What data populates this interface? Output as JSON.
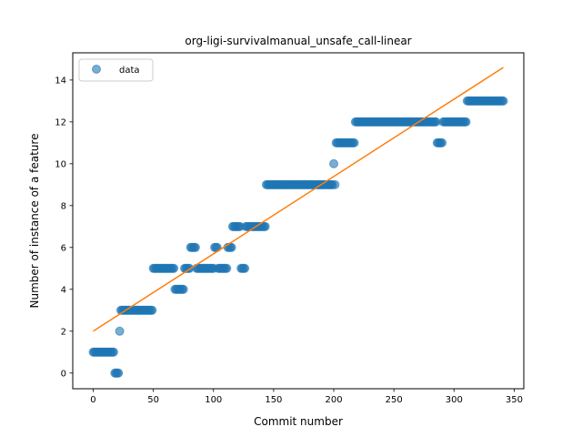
{
  "chart_data": {
    "type": "scatter",
    "title": "org-ligi-survivalmanual_unsafe_call-linear",
    "xlabel": "Commit number",
    "ylabel": "Number of instance of a feature",
    "xlim": [
      -17,
      358
    ],
    "ylim": [
      -0.75,
      15.3
    ],
    "xticks": [
      0,
      50,
      100,
      150,
      200,
      250,
      300,
      350
    ],
    "yticks": [
      0,
      2,
      4,
      6,
      8,
      10,
      12,
      14
    ],
    "grid": false,
    "legend": {
      "placement": "top-left",
      "entries": [
        "data"
      ]
    },
    "colors": {
      "data": "#1f77b4",
      "fit": "#ff7f0e"
    },
    "series": [
      {
        "name": "data",
        "kind": "scatter",
        "runs": [
          {
            "x_start": 0,
            "x_end": 18,
            "y": 1
          },
          {
            "x_start": 18,
            "x_end": 22,
            "y": 0
          },
          {
            "x_start": 22,
            "x_end": 23,
            "y": 2
          },
          {
            "x_start": 23,
            "x_end": 50,
            "y": 3
          },
          {
            "x_start": 50,
            "x_end": 68,
            "y": 5
          },
          {
            "x_start": 68,
            "x_end": 76,
            "y": 4
          },
          {
            "x_start": 76,
            "x_end": 81,
            "y": 5
          },
          {
            "x_start": 81,
            "x_end": 86,
            "y": 6
          },
          {
            "x_start": 86,
            "x_end": 101,
            "y": 5
          },
          {
            "x_start": 101,
            "x_end": 104,
            "y": 6
          },
          {
            "x_start": 104,
            "x_end": 112,
            "y": 5
          },
          {
            "x_start": 112,
            "x_end": 116,
            "y": 6
          },
          {
            "x_start": 116,
            "x_end": 123,
            "y": 7
          },
          {
            "x_start": 123,
            "x_end": 127,
            "y": 5
          },
          {
            "x_start": 127,
            "x_end": 144,
            "y": 7
          },
          {
            "x_start": 144,
            "x_end": 200,
            "y": 9
          },
          {
            "x_start": 200,
            "x_end": 201,
            "y": 10
          },
          {
            "x_start": 201,
            "x_end": 202,
            "y": 9
          },
          {
            "x_start": 202,
            "x_end": 218,
            "y": 11
          },
          {
            "x_start": 218,
            "x_end": 286,
            "y": 12
          },
          {
            "x_start": 286,
            "x_end": 291,
            "y": 11
          },
          {
            "x_start": 291,
            "x_end": 311,
            "y": 12
          },
          {
            "x_start": 311,
            "x_end": 342,
            "y": 13
          }
        ]
      },
      {
        "kind": "line",
        "x": [
          0,
          341
        ],
        "y": [
          2.0,
          14.6
        ]
      }
    ]
  }
}
